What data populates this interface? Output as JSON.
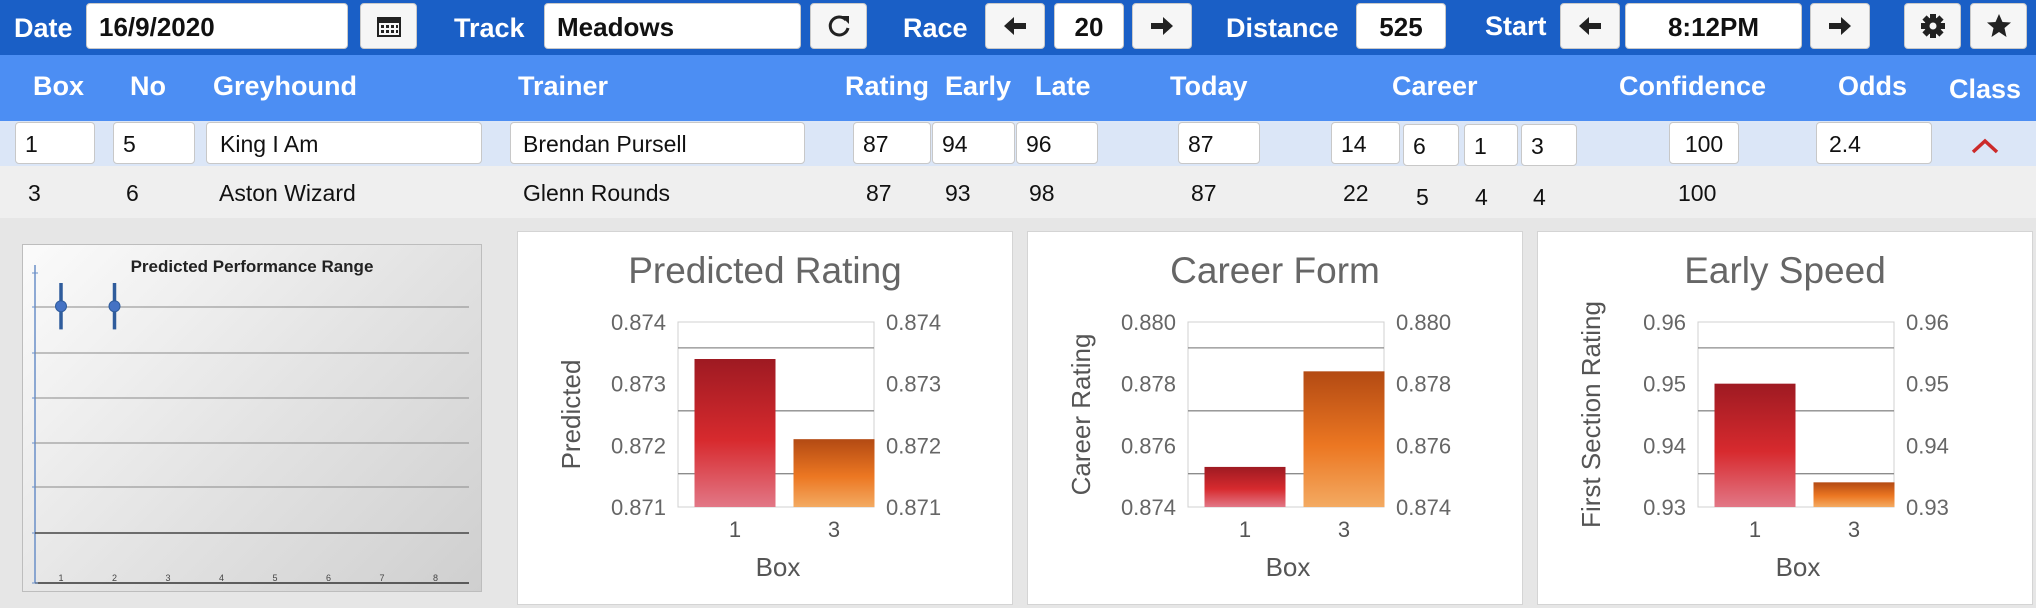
{
  "toolbar": {
    "date_label": "Date",
    "date_value": "16/9/2020",
    "track_label": "Track",
    "track_value": "Meadows",
    "race_label": "Race",
    "race_value": "20",
    "distance_label": "Distance",
    "distance_value": "525",
    "start_label": "Start",
    "start_value": "8:12PM",
    "icons": [
      "calendar-icon",
      "refresh-icon",
      "arrow-left-icon",
      "arrow-right-icon",
      "gear-icon",
      "star-icon"
    ]
  },
  "table": {
    "columns": [
      "Box",
      "No",
      "Greyhound",
      "Trainer",
      "Rating",
      "Early",
      "Late",
      "Today",
      "Career",
      "Confidence",
      "Odds",
      "Class"
    ],
    "rows": [
      {
        "box": "1",
        "no": "5",
        "greyhound": "King I Am",
        "trainer": "Brendan Pursell",
        "rating": "87",
        "early": "94",
        "late": "96",
        "today": "87",
        "career": [
          "14",
          "6",
          "1",
          "3"
        ],
        "confidence": "100",
        "odds": "2.4"
      },
      {
        "box": "3",
        "no": "6",
        "greyhound": "Aston Wizard",
        "trainer": "Glenn Rounds",
        "rating": "87",
        "early": "93",
        "late": "98",
        "today": "87",
        "career": [
          "22",
          "5",
          "4",
          "4"
        ],
        "confidence": "100",
        "odds": ""
      }
    ]
  },
  "colors": {
    "toolbar": "#1a5fc6",
    "header": "#4c8ef3",
    "row_selected": "#dbe6f7",
    "bar_box1": "#c0202a",
    "bar_box3": "#e26a1c",
    "chevron": "#cc2a2a"
  },
  "chart_data": [
    {
      "type": "scatter",
      "title": "Predicted Performance Range",
      "x_ticks": [
        "1",
        "2",
        "3",
        "4",
        "5",
        "6",
        "7",
        "8"
      ],
      "x": [
        1,
        2
      ],
      "y_ranges": [
        [
          0.3,
          0.74
        ],
        [
          0.3,
          0.74
        ]
      ]
    },
    {
      "type": "bar",
      "title": "Predicted Rating",
      "categories": [
        "1",
        "3"
      ],
      "values": [
        0.8734,
        0.8721
      ],
      "xlabel": "Box",
      "ylabel": "Predicted",
      "ylim": [
        0.871,
        0.874
      ],
      "y_ticks": [
        "0.871",
        "0.872",
        "0.873",
        "0.874"
      ],
      "y_ticks_right": [
        "0.871",
        "0.872",
        "0.873",
        "0.874"
      ]
    },
    {
      "type": "bar",
      "title": "Career Form",
      "categories": [
        "1",
        "3"
      ],
      "values": [
        0.8753,
        0.8784
      ],
      "xlabel": "Box",
      "ylabel": "Career Rating",
      "ylim": [
        0.874,
        0.88
      ],
      "y_ticks": [
        "0.874",
        "0.876",
        "0.878",
        "0.880"
      ],
      "y_ticks_right": [
        "0.874",
        "0.876",
        "0.878",
        "0.880"
      ]
    },
    {
      "type": "bar",
      "title": "Early Speed",
      "categories": [
        "1",
        "3"
      ],
      "values": [
        0.95,
        0.934
      ],
      "xlabel": "Box",
      "ylabel": "First Section Rating",
      "ylim": [
        0.93,
        0.96
      ],
      "y_ticks": [
        "0.93",
        "0.94",
        "0.95",
        "0.96"
      ],
      "y_ticks_right": [
        "0.93",
        "0.94",
        "0.95",
        "0.96"
      ]
    }
  ]
}
